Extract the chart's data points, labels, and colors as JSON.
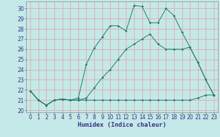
{
  "background_color": "#c5e8e8",
  "grid_color": "#e0a8a8",
  "line_color": "#1a7a6a",
  "xlabel": "Humidex (Indice chaleur)",
  "xlim_min": -0.5,
  "xlim_max": 23.5,
  "ylim_min": 19.8,
  "ylim_max": 30.7,
  "yticks": [
    20,
    21,
    22,
    23,
    24,
    25,
    26,
    27,
    28,
    29,
    30
  ],
  "xticks": [
    0,
    1,
    2,
    3,
    4,
    5,
    6,
    7,
    8,
    9,
    10,
    11,
    12,
    13,
    14,
    15,
    16,
    17,
    18,
    19,
    20,
    21,
    22,
    23
  ],
  "s1_x": [
    0,
    1,
    2,
    3,
    4,
    5,
    6,
    7,
    8,
    9,
    10,
    11,
    12,
    13,
    14,
    15,
    16,
    17,
    18,
    19,
    20,
    21,
    22,
    23
  ],
  "s1_y": [
    21.9,
    21.0,
    20.5,
    21.0,
    21.1,
    21.0,
    21.0,
    21.0,
    21.0,
    21.0,
    21.0,
    21.0,
    21.0,
    21.0,
    21.0,
    21.0,
    21.0,
    21.0,
    21.0,
    21.0,
    21.0,
    21.2,
    21.5,
    21.5
  ],
  "s2_x": [
    0,
    1,
    2,
    3,
    4,
    5,
    6,
    7,
    8,
    9,
    10,
    11,
    12,
    13,
    14,
    15,
    16,
    17,
    18,
    19,
    20,
    21,
    22,
    23
  ],
  "s2_y": [
    21.9,
    21.0,
    20.5,
    21.0,
    21.1,
    21.0,
    21.2,
    24.5,
    26.1,
    27.2,
    28.3,
    28.3,
    27.8,
    30.3,
    30.2,
    28.6,
    28.6,
    30.0,
    29.3,
    27.7,
    26.2,
    24.7,
    23.0,
    21.5
  ],
  "s3_x": [
    0,
    1,
    2,
    3,
    4,
    5,
    6,
    7,
    8,
    9,
    10,
    11,
    12,
    13,
    14,
    15,
    16,
    17,
    18,
    19,
    20,
    21,
    22,
    23
  ],
  "s3_y": [
    21.9,
    21.0,
    20.5,
    21.0,
    21.1,
    21.0,
    21.0,
    21.2,
    22.2,
    23.2,
    24.0,
    25.0,
    26.0,
    26.5,
    27.0,
    27.5,
    26.5,
    26.0,
    26.0,
    26.0,
    26.2,
    24.7,
    23.0,
    21.5
  ],
  "tick_color": "#333388",
  "tick_fontsize": 5.5,
  "xlabel_fontsize": 6.5
}
